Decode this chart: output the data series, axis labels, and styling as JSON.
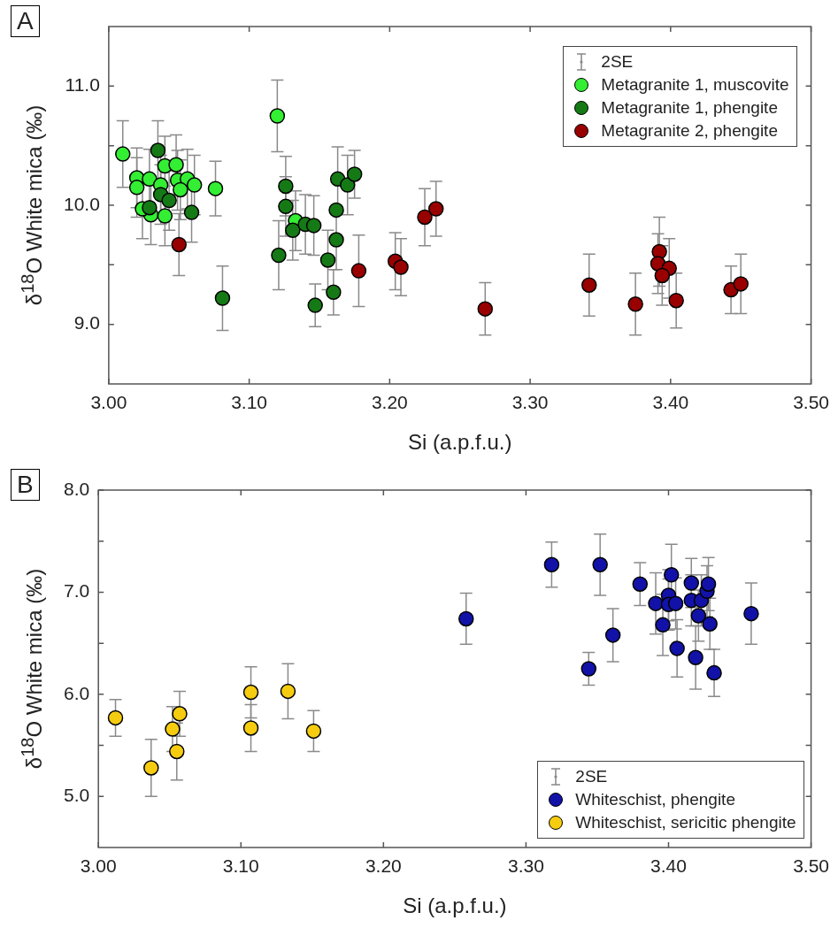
{
  "chart_data": [
    {
      "type": "scatter",
      "title": "A",
      "xlabel": "Si (a.p.f.u.)",
      "ylabel": "δ$^{18}$O White mica (‰)",
      "legend_title": "2SE",
      "legend": "top right",
      "marker": "circle",
      "xlim": [
        3.0,
        3.5
      ],
      "xticks": [
        {
          "value": 3.0,
          "label": "3.00"
        },
        {
          "value": 3.1,
          "label": "3.10"
        },
        {
          "value": 3.2,
          "label": "3.20"
        },
        {
          "value": 3.3,
          "label": "3.30"
        },
        {
          "value": 3.4,
          "label": "3.40"
        },
        {
          "value": 3.5,
          "label": "3.50"
        }
      ],
      "ylim": [
        8.5,
        11.5
      ],
      "yticks": [
        {
          "value": 9.0,
          "label": "9.0"
        },
        {
          "value": 9.5,
          "label": null
        },
        {
          "value": 10.0,
          "label": "10.0"
        },
        {
          "value": 10.5,
          "label": null
        },
        {
          "value": 11.0,
          "label": "11.0"
        }
      ],
      "series": [
        {
          "name": "Metagranite 1, muscovite",
          "color": "#33ee33",
          "x": [
            3.01,
            3.02,
            3.02,
            3.029,
            3.04,
            3.048,
            3.049,
            3.056,
            3.061,
            3.051,
            3.037,
            3.03,
            3.04,
            3.024,
            3.076,
            3.12,
            3.133
          ],
          "values": [
            10.43,
            10.23,
            10.15,
            10.22,
            10.33,
            10.34,
            10.21,
            10.22,
            10.17,
            10.13,
            10.17,
            9.92,
            9.91,
            9.97,
            10.14,
            10.75,
            9.87
          ],
          "errors": [
            0.28,
            0.25,
            0.25,
            0.25,
            0.25,
            0.25,
            0.25,
            0.25,
            0.25,
            0.25,
            0.25,
            0.25,
            0.25,
            0.25,
            0.23,
            0.3,
            0.25
          ]
        },
        {
          "name": "Metagranite 1, phengite",
          "color": "#157a15",
          "x": [
            3.035,
            3.037,
            3.043,
            3.029,
            3.059,
            3.081,
            3.126,
            3.126,
            3.131,
            3.14,
            3.146,
            3.121,
            3.147,
            3.156,
            3.16,
            3.163,
            3.162,
            3.162,
            3.17,
            3.175
          ],
          "values": [
            10.46,
            10.09,
            10.04,
            9.98,
            9.94,
            9.22,
            10.16,
            9.99,
            9.79,
            9.84,
            9.83,
            9.58,
            9.16,
            9.54,
            9.27,
            10.22,
            9.96,
            9.71,
            10.17,
            10.26
          ],
          "errors": [
            0.25,
            0.25,
            0.25,
            null,
            0.25,
            0.27,
            0.25,
            0.25,
            0.25,
            0.25,
            0.25,
            0.29,
            0.18,
            0.25,
            0.19,
            0.27,
            null,
            0.25,
            0.25,
            0.2
          ]
        },
        {
          "name": "Metagranite 2, phengite",
          "color": "#990000",
          "x": [
            3.05,
            3.178,
            3.204,
            3.208,
            3.225,
            3.233,
            3.268,
            3.342,
            3.375,
            3.392,
            3.391,
            3.399,
            3.394,
            3.404,
            3.443,
            3.45
          ],
          "values": [
            9.67,
            9.45,
            9.53,
            9.48,
            9.9,
            9.97,
            9.13,
            9.33,
            9.17,
            9.61,
            9.51,
            9.47,
            9.41,
            9.2,
            9.29,
            9.34
          ],
          "errors": [
            0.26,
            0.3,
            0.24,
            0.24,
            0.24,
            0.23,
            0.22,
            0.26,
            0.26,
            0.29,
            0.25,
            0.25,
            0.25,
            0.23,
            0.2,
            0.25
          ]
        }
      ]
    },
    {
      "type": "scatter",
      "title": "B",
      "xlabel": "Si (a.p.f.u.)",
      "ylabel": "δ$^{18}$O White mica (‰)",
      "legend_title": "2SE",
      "legend": "bottom right",
      "marker": "circle",
      "xlim": [
        3.0,
        3.5
      ],
      "xticks": [
        {
          "value": 3.0,
          "label": "3.00"
        },
        {
          "value": 3.1,
          "label": "3.10"
        },
        {
          "value": 3.2,
          "label": "3.20"
        },
        {
          "value": 3.3,
          "label": "3.30"
        },
        {
          "value": 3.4,
          "label": "3.40"
        },
        {
          "value": 3.5,
          "label": "3.50"
        }
      ],
      "ylim": [
        4.5,
        8.0
      ],
      "yticks": [
        {
          "value": 5.0,
          "label": "5.0"
        },
        {
          "value": 5.5,
          "label": null
        },
        {
          "value": 6.0,
          "label": "6.0"
        },
        {
          "value": 6.5,
          "label": null
        },
        {
          "value": 7.0,
          "label": "7.0"
        },
        {
          "value": 7.5,
          "label": null
        },
        {
          "value": 8.0,
          "label": "8.0"
        }
      ],
      "series": [
        {
          "name": "Whiteschist, phengite",
          "color": "#1212a8",
          "x": [
            3.258,
            3.318,
            3.352,
            3.344,
            3.361,
            3.38,
            3.391,
            3.396,
            3.4,
            3.4,
            3.405,
            3.402,
            3.406,
            3.416,
            3.416,
            3.421,
            3.423,
            3.419,
            3.427,
            3.428,
            3.429,
            3.432,
            3.458
          ],
          "values": [
            6.74,
            7.27,
            7.27,
            6.25,
            6.58,
            7.08,
            6.89,
            6.68,
            6.97,
            6.88,
            6.89,
            7.17,
            6.45,
            7.09,
            6.92,
            6.77,
            6.92,
            6.36,
            7.01,
            7.08,
            6.69,
            6.21,
            6.79
          ],
          "errors": [
            0.25,
            0.22,
            0.3,
            0.16,
            0.26,
            0.21,
            0.3,
            0.3,
            0.25,
            0.25,
            0.25,
            0.3,
            0.28,
            0.24,
            0.25,
            0.25,
            0.25,
            0.31,
            0.25,
            0.26,
            0.25,
            0.23,
            0.3
          ]
        },
        {
          "name": "Whiteschist, sericitic phengite",
          "color": "#f5cc10",
          "x": [
            3.012,
            3.037,
            3.052,
            3.057,
            3.055,
            3.107,
            3.107,
            3.133,
            3.151
          ],
          "values": [
            5.77,
            5.28,
            5.66,
            5.81,
            5.44,
            6.02,
            5.67,
            6.03,
            5.64
          ],
          "errors": [
            0.18,
            0.28,
            0.22,
            0.22,
            0.28,
            0.25,
            0.23,
            0.27,
            0.2
          ]
        }
      ]
    }
  ]
}
